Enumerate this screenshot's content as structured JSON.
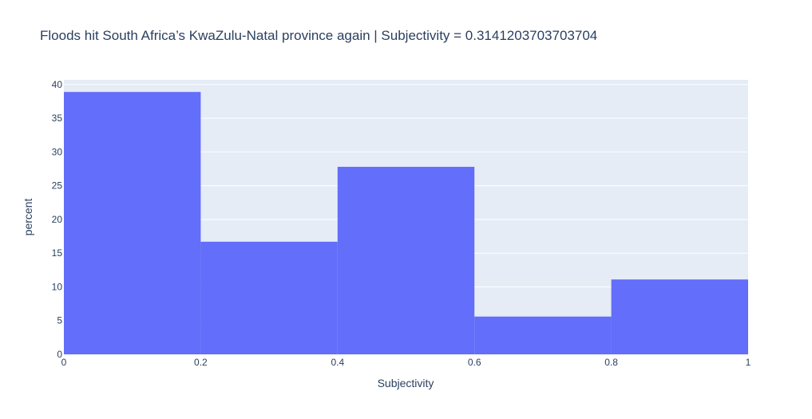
{
  "chart_data": {
    "type": "bar",
    "title": "Floods hit South Africa’s KwaZulu-Natal province again  | Subjectivity = 0.3141203703703704",
    "xlabel": "Subjectivity",
    "ylabel": "percent",
    "bins": [
      {
        "start": 0.0,
        "end": 0.2,
        "value": 38.9
      },
      {
        "start": 0.2,
        "end": 0.4,
        "value": 16.7
      },
      {
        "start": 0.4,
        "end": 0.6,
        "value": 27.8
      },
      {
        "start": 0.6,
        "end": 0.8,
        "value": 5.6
      },
      {
        "start": 0.8,
        "end": 1.0,
        "value": 11.1
      }
    ],
    "xlim": [
      0,
      1
    ],
    "ylim": [
      0,
      40.7
    ],
    "x_ticks": [
      "0",
      "0.2",
      "0.4",
      "0.6",
      "0.8",
      "1"
    ],
    "x_tick_values": [
      0,
      0.2,
      0.4,
      0.6,
      0.8,
      1
    ],
    "y_ticks": [
      "0",
      "5",
      "10",
      "15",
      "20",
      "25",
      "30",
      "35",
      "40"
    ],
    "y_tick_values": [
      0,
      5,
      10,
      15,
      20,
      25,
      30,
      35,
      40
    ],
    "grid": true,
    "colors": {
      "bar": "#636efa",
      "plot_background": "#e5ecf6",
      "grid": "#ffffff",
      "text": "#2a3f5f"
    }
  }
}
